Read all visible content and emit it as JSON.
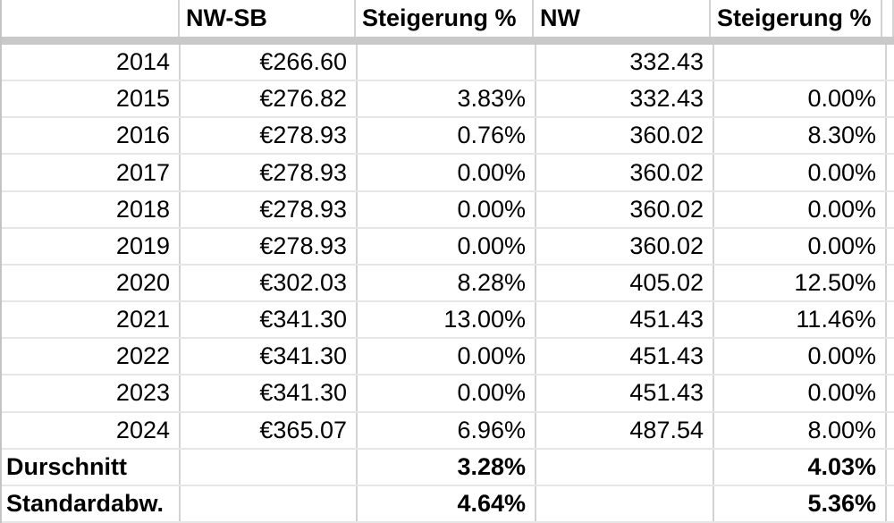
{
  "table": {
    "headers": {
      "col0": "",
      "nwsb": "NW-SB",
      "st1": "Steigerung %",
      "nw": "NW",
      "st2": "Steigerung %"
    },
    "rows": [
      {
        "label": "2014",
        "nwsb": "€266.60",
        "st1": "",
        "nw": "332.43",
        "st2": ""
      },
      {
        "label": "2015",
        "nwsb": "€276.82",
        "st1": "3.83%",
        "nw": "332.43",
        "st2": "0.00%"
      },
      {
        "label": "2016",
        "nwsb": "€278.93",
        "st1": "0.76%",
        "nw": "360.02",
        "st2": "8.30%"
      },
      {
        "label": "2017",
        "nwsb": "€278.93",
        "st1": "0.00%",
        "nw": "360.02",
        "st2": "0.00%"
      },
      {
        "label": "2018",
        "nwsb": "€278.93",
        "st1": "0.00%",
        "nw": "360.02",
        "st2": "0.00%"
      },
      {
        "label": "2019",
        "nwsb": "€278.93",
        "st1": "0.00%",
        "nw": "360.02",
        "st2": "0.00%"
      },
      {
        "label": "2020",
        "nwsb": "€302.03",
        "st1": "8.28%",
        "nw": "405.02",
        "st2": "12.50%"
      },
      {
        "label": "2021",
        "nwsb": "€341.30",
        "st1": "13.00%",
        "nw": "451.43",
        "st2": "11.46%"
      },
      {
        "label": "2022",
        "nwsb": "€341.30",
        "st1": "0.00%",
        "nw": "451.43",
        "st2": "0.00%"
      },
      {
        "label": "2023",
        "nwsb": "€341.30",
        "st1": "0.00%",
        "nw": "451.43",
        "st2": "0.00%"
      },
      {
        "label": "2024",
        "nwsb": "€365.07",
        "st1": "6.96%",
        "nw": "487.54",
        "st2": "8.00%"
      },
      {
        "label": "Durschnitt",
        "nwsb": "",
        "st1": "3.28%",
        "nw": "",
        "st2": "4.03%"
      },
      {
        "label": "Standardabw.",
        "nwsb": "",
        "st1": "4.64%",
        "nw": "",
        "st2": "5.36%"
      }
    ],
    "colors": {
      "freeze_bar": "#c9c9c9",
      "grid_vertical": "#d3d3d3",
      "grid_horizontal": "#e6e6e6",
      "text": "#000000",
      "background": "#ffffff"
    }
  }
}
